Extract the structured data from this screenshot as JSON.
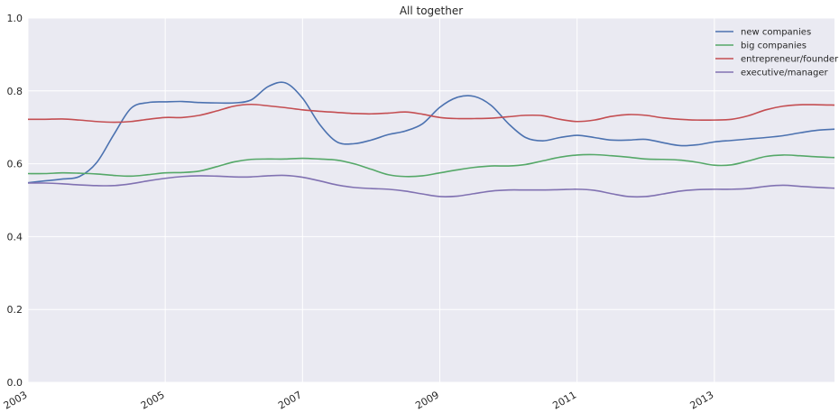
{
  "chart_data": {
    "type": "line",
    "title": "All together",
    "xlabel": "",
    "ylabel": "",
    "xlim": [
      2003.0,
      2014.75
    ],
    "ylim": [
      0.0,
      1.0
    ],
    "grid": true,
    "legend_position": "top-right",
    "x_ticks": [
      "2003",
      "2005",
      "2007",
      "2009",
      "2011",
      "2013"
    ],
    "y_ticks": [
      "0.0",
      "0.2",
      "0.4",
      "0.6",
      "0.8",
      "1.0"
    ],
    "series": [
      {
        "name": "new companies",
        "color": "#4C72B0",
        "x": [
          2003.0,
          2003.25,
          2003.5,
          2003.75,
          2004.0,
          2004.25,
          2004.5,
          2004.75,
          2005.0,
          2005.25,
          2005.5,
          2005.75,
          2006.0,
          2006.25,
          2006.5,
          2006.75,
          2007.0,
          2007.25,
          2007.5,
          2007.75,
          2008.0,
          2008.25,
          2008.5,
          2008.75,
          2009.0,
          2009.25,
          2009.5,
          2009.75,
          2010.0,
          2010.25,
          2010.5,
          2010.75,
          2011.0,
          2011.25,
          2011.5,
          2011.75,
          2012.0,
          2012.25,
          2012.5,
          2012.75,
          2013.0,
          2013.25,
          2013.5,
          2013.75,
          2014.0,
          2014.25,
          2014.5,
          2014.75
        ],
        "values": [
          0.548,
          0.553,
          0.558,
          0.565,
          0.603,
          0.68,
          0.752,
          0.768,
          0.77,
          0.771,
          0.768,
          0.767,
          0.767,
          0.775,
          0.812,
          0.822,
          0.78,
          0.708,
          0.66,
          0.655,
          0.665,
          0.68,
          0.69,
          0.71,
          0.755,
          0.782,
          0.785,
          0.76,
          0.71,
          0.672,
          0.663,
          0.672,
          0.678,
          0.672,
          0.665,
          0.665,
          0.667,
          0.658,
          0.65,
          0.652,
          0.66,
          0.664,
          0.668,
          0.672,
          0.677,
          0.685,
          0.692,
          0.695
        ]
      },
      {
        "name": "big companies",
        "color": "#55A868",
        "x": [
          2003.0,
          2003.25,
          2003.5,
          2003.75,
          2004.0,
          2004.25,
          2004.5,
          2004.75,
          2005.0,
          2005.25,
          2005.5,
          2005.75,
          2006.0,
          2006.25,
          2006.5,
          2006.75,
          2007.0,
          2007.25,
          2007.5,
          2007.75,
          2008.0,
          2008.25,
          2008.5,
          2008.75,
          2009.0,
          2009.25,
          2009.5,
          2009.75,
          2010.0,
          2010.25,
          2010.5,
          2010.75,
          2011.0,
          2011.25,
          2011.5,
          2011.75,
          2012.0,
          2012.25,
          2012.5,
          2012.75,
          2013.0,
          2013.25,
          2013.5,
          2013.75,
          2014.0,
          2014.25,
          2014.5,
          2014.75
        ],
        "values": [
          0.573,
          0.573,
          0.575,
          0.574,
          0.572,
          0.568,
          0.566,
          0.57,
          0.575,
          0.576,
          0.58,
          0.592,
          0.605,
          0.612,
          0.613,
          0.613,
          0.615,
          0.613,
          0.61,
          0.6,
          0.585,
          0.57,
          0.565,
          0.567,
          0.575,
          0.583,
          0.59,
          0.594,
          0.594,
          0.598,
          0.608,
          0.618,
          0.624,
          0.625,
          0.622,
          0.618,
          0.613,
          0.612,
          0.61,
          0.604,
          0.596,
          0.597,
          0.608,
          0.62,
          0.624,
          0.622,
          0.619,
          0.617
        ]
      },
      {
        "name": "entrepreneur/founder",
        "color": "#C44E52",
        "x": [
          2003.0,
          2003.25,
          2003.5,
          2003.75,
          2004.0,
          2004.25,
          2004.5,
          2004.75,
          2005.0,
          2005.25,
          2005.5,
          2005.75,
          2006.0,
          2006.25,
          2006.5,
          2006.75,
          2007.0,
          2007.25,
          2007.5,
          2007.75,
          2008.0,
          2008.25,
          2008.5,
          2008.75,
          2009.0,
          2009.25,
          2009.5,
          2009.75,
          2010.0,
          2010.25,
          2010.5,
          2010.75,
          2011.0,
          2011.25,
          2011.5,
          2011.75,
          2012.0,
          2012.25,
          2012.5,
          2012.75,
          2013.0,
          2013.25,
          2013.5,
          2013.75,
          2014.0,
          2014.25,
          2014.5,
          2014.75
        ],
        "values": [
          0.722,
          0.722,
          0.723,
          0.72,
          0.716,
          0.714,
          0.716,
          0.722,
          0.727,
          0.727,
          0.733,
          0.745,
          0.758,
          0.763,
          0.759,
          0.754,
          0.748,
          0.744,
          0.741,
          0.738,
          0.737,
          0.739,
          0.742,
          0.736,
          0.727,
          0.724,
          0.724,
          0.725,
          0.729,
          0.733,
          0.732,
          0.722,
          0.716,
          0.72,
          0.73,
          0.735,
          0.733,
          0.726,
          0.722,
          0.72,
          0.72,
          0.722,
          0.732,
          0.748,
          0.758,
          0.762,
          0.762,
          0.761
        ]
      },
      {
        "name": "executive/manager",
        "color": "#8172B2",
        "x": [
          2003.0,
          2003.25,
          2003.5,
          2003.75,
          2004.0,
          2004.25,
          2004.5,
          2004.75,
          2005.0,
          2005.25,
          2005.5,
          2005.75,
          2006.0,
          2006.25,
          2006.5,
          2006.75,
          2007.0,
          2007.25,
          2007.5,
          2007.75,
          2008.0,
          2008.25,
          2008.5,
          2008.75,
          2009.0,
          2009.25,
          2009.5,
          2009.75,
          2010.0,
          2010.25,
          2010.5,
          2010.75,
          2011.0,
          2011.25,
          2011.5,
          2011.75,
          2012.0,
          2012.25,
          2012.5,
          2012.75,
          2013.0,
          2013.25,
          2013.5,
          2013.75,
          2014.0,
          2014.25,
          2014.5,
          2014.75
        ],
        "values": [
          0.547,
          0.547,
          0.545,
          0.542,
          0.54,
          0.54,
          0.545,
          0.553,
          0.56,
          0.565,
          0.567,
          0.566,
          0.564,
          0.564,
          0.567,
          0.568,
          0.563,
          0.553,
          0.542,
          0.535,
          0.532,
          0.53,
          0.525,
          0.517,
          0.51,
          0.511,
          0.518,
          0.525,
          0.528,
          0.528,
          0.528,
          0.529,
          0.53,
          0.527,
          0.518,
          0.51,
          0.51,
          0.517,
          0.525,
          0.529,
          0.53,
          0.53,
          0.532,
          0.538,
          0.541,
          0.538,
          0.535,
          0.533
        ]
      }
    ]
  }
}
